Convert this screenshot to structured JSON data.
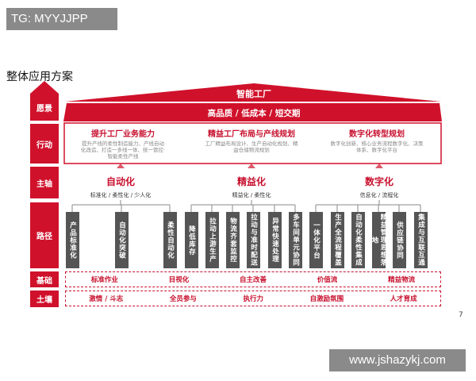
{
  "tag": "TG: MYYJJPP",
  "watermark": "www.jshazykj.com",
  "page_title": "整体应用方案",
  "page_number": "7",
  "rows": {
    "vision": "愿景",
    "action": "行动",
    "axis": "主轴",
    "path": "路径",
    "foundation": "基础",
    "soil": "土壤"
  },
  "vision": {
    "title": "智能工厂",
    "goals": "高品质 / 低成本 / 短交期"
  },
  "actions": [
    {
      "title": "提升工厂业务能力",
      "desc": "提升产线的柔性制造能力、产线自动化改造、打造一多线一体、统一管控·智能柔性产线"
    },
    {
      "title": "精益工厂布局与产线规划",
      "desc": "工厂精益布局设计、生产自动化规划、精益仓储物流规划"
    },
    {
      "title": "数字化转型规划",
      "desc": "数字化创新、核心业务流程数字化、决策体系、数字化平台"
    }
  ],
  "axes": [
    {
      "title": "自动化",
      "sub": "标准化 / 柔性化 / 少人化"
    },
    {
      "title": "精益化",
      "sub": "精益化 / 柔性化"
    },
    {
      "title": "数字化",
      "sub": "信息化 / 流程化"
    }
  ],
  "paths": [
    "产品标准化",
    "自动化突破",
    "柔性自动化",
    "降低库存",
    "拉动上游生产",
    "物流齐套监控",
    "拉动与准时配送",
    "异常快速处理",
    "多车间单元协同",
    "一体化平台",
    "生产全流程覆盖",
    "自动化柔性集成",
    "精益管理思想落地",
    "供应链协同",
    "集成与互联互通"
  ],
  "foundation": [
    "标准作业",
    "目视化",
    "自主改善",
    "价值流",
    "精益物流"
  ],
  "soil": [
    "激情 / 斗志",
    "全员参与",
    "执行力",
    "自激励氛围",
    "人才育成"
  ],
  "colors": {
    "accent": "#d0112b",
    "path_box": "#555555"
  }
}
